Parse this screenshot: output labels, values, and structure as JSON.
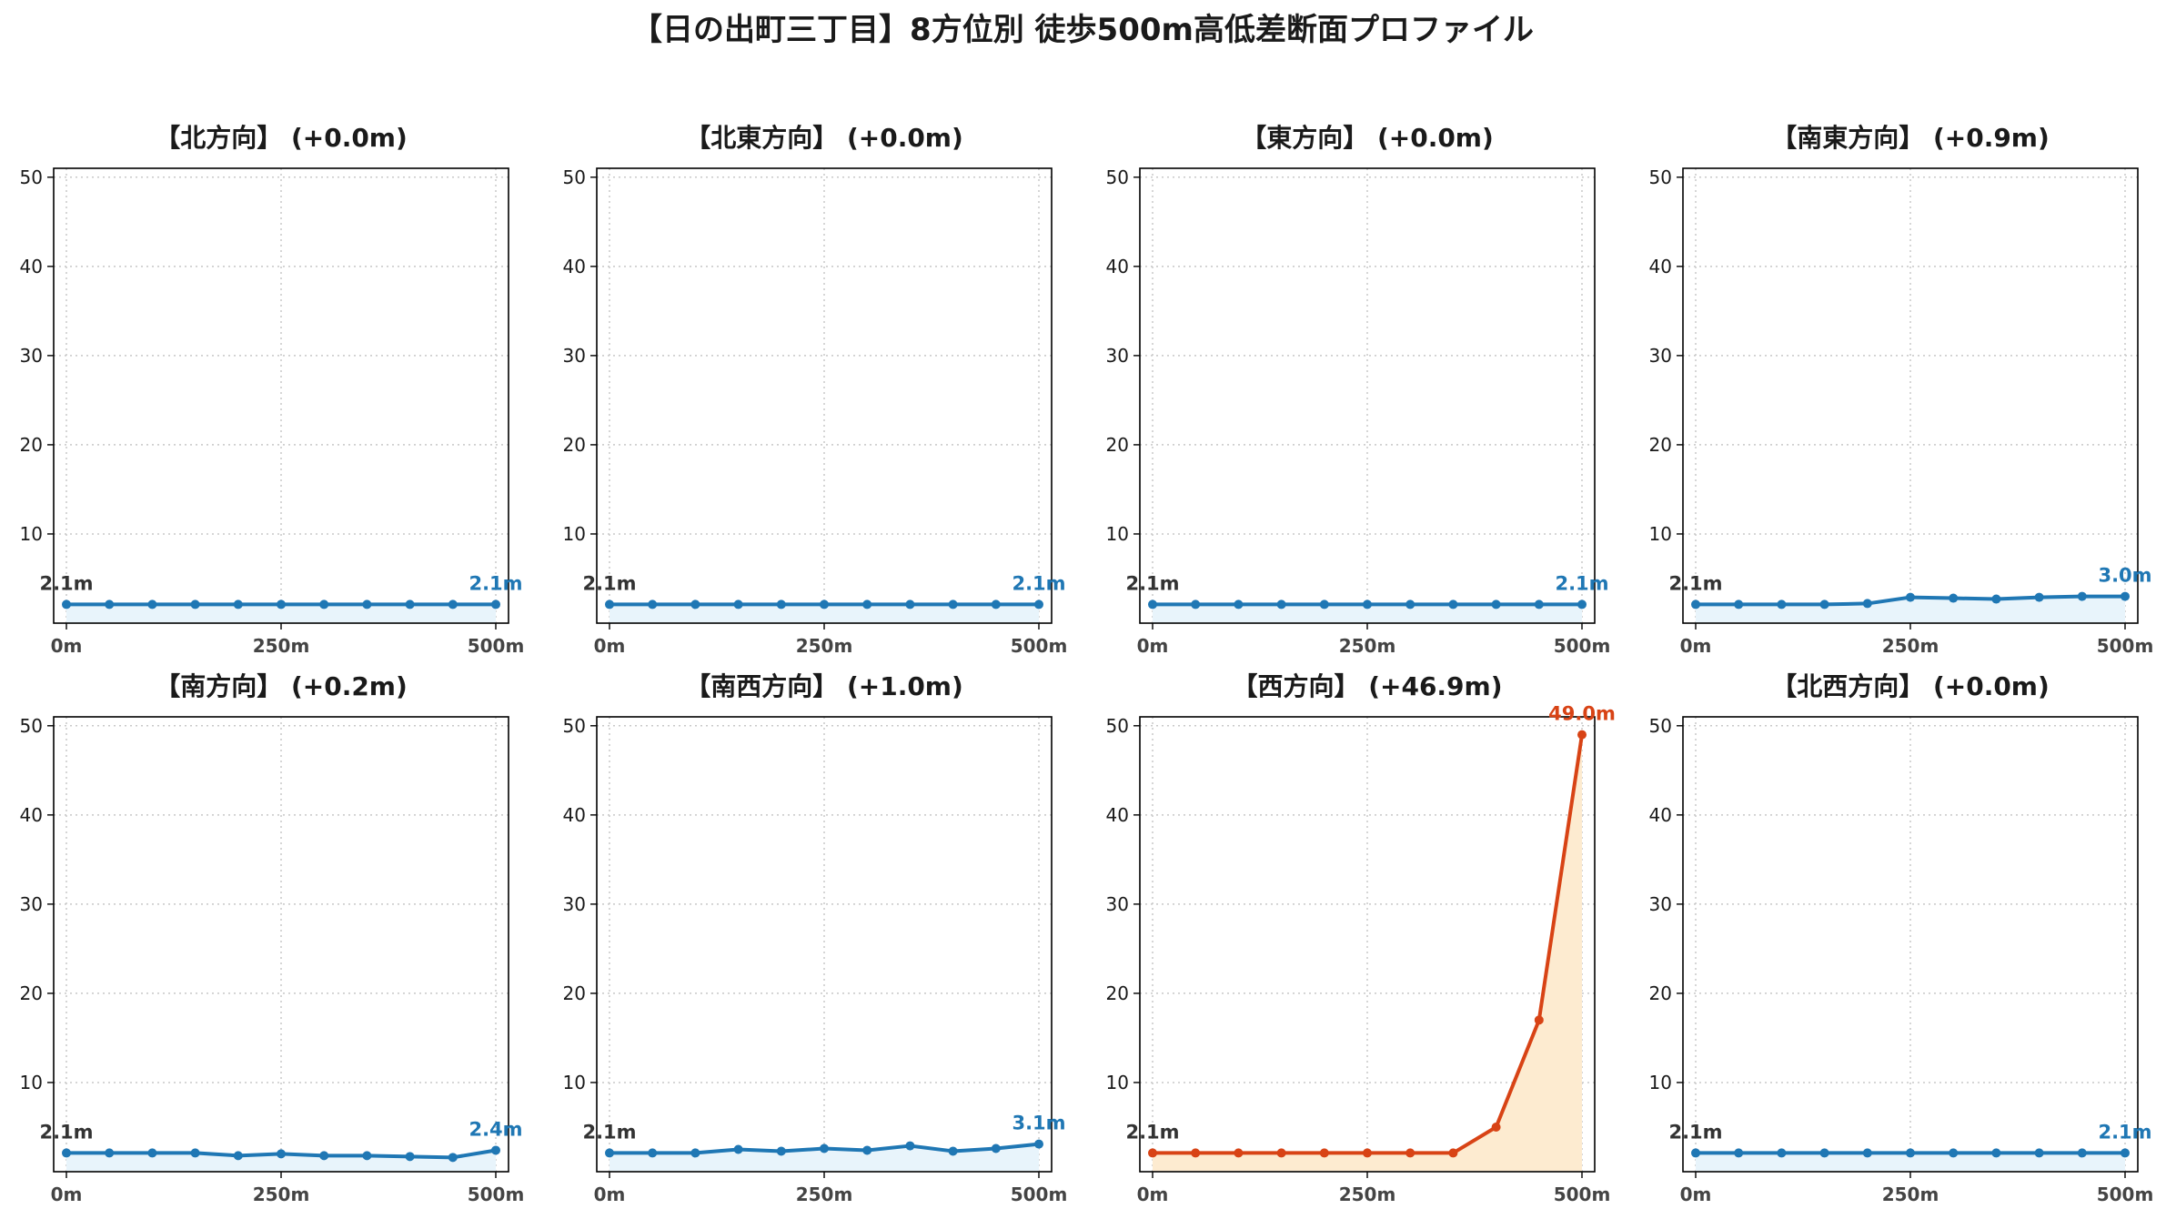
{
  "title": "【日の出町三丁目】8方位別 徒歩500m高低差断面プロファイル",
  "colors": {
    "normal_line": "#1f77b4",
    "normal_fill": "#e8f4fb",
    "highlight_line": "#d84315",
    "highlight_fill": "#fdebd0",
    "grid": "#c8c8c8",
    "start_label": "#333333"
  },
  "chart_data": [
    {
      "type": "line",
      "title": "【北方向】 (+0.0m)",
      "highlight": false,
      "x": [
        0,
        50,
        100,
        150,
        200,
        250,
        300,
        350,
        400,
        450,
        500
      ],
      "y": [
        2.1,
        2.1,
        2.1,
        2.1,
        2.1,
        2.1,
        2.1,
        2.1,
        2.1,
        2.1,
        2.1
      ],
      "start_label": "2.1m",
      "end_label": "2.1m",
      "xticks": [
        "0m",
        "250m",
        "500m"
      ],
      "yticks": [
        10,
        20,
        30,
        40,
        50
      ],
      "ylim": [
        0,
        51
      ],
      "xlim": [
        0,
        500
      ],
      "grid": true
    },
    {
      "type": "line",
      "title": "【北東方向】 (+0.0m)",
      "highlight": false,
      "x": [
        0,
        50,
        100,
        150,
        200,
        250,
        300,
        350,
        400,
        450,
        500
      ],
      "y": [
        2.1,
        2.1,
        2.1,
        2.1,
        2.1,
        2.1,
        2.1,
        2.1,
        2.1,
        2.1,
        2.1
      ],
      "start_label": "2.1m",
      "end_label": "2.1m",
      "xticks": [
        "0m",
        "250m",
        "500m"
      ],
      "yticks": [
        10,
        20,
        30,
        40,
        50
      ],
      "ylim": [
        0,
        51
      ],
      "xlim": [
        0,
        500
      ],
      "grid": true
    },
    {
      "type": "line",
      "title": "【東方向】 (+0.0m)",
      "highlight": false,
      "x": [
        0,
        50,
        100,
        150,
        200,
        250,
        300,
        350,
        400,
        450,
        500
      ],
      "y": [
        2.1,
        2.1,
        2.1,
        2.1,
        2.1,
        2.1,
        2.1,
        2.1,
        2.1,
        2.1,
        2.1
      ],
      "start_label": "2.1m",
      "end_label": "2.1m",
      "xticks": [
        "0m",
        "250m",
        "500m"
      ],
      "yticks": [
        10,
        20,
        30,
        40,
        50
      ],
      "ylim": [
        0,
        51
      ],
      "xlim": [
        0,
        500
      ],
      "grid": true
    },
    {
      "type": "line",
      "title": "【南東方向】 (+0.9m)",
      "highlight": false,
      "x": [
        0,
        50,
        100,
        150,
        200,
        250,
        300,
        350,
        400,
        450,
        500
      ],
      "y": [
        2.1,
        2.1,
        2.1,
        2.1,
        2.2,
        2.9,
        2.8,
        2.7,
        2.9,
        3.0,
        3.0
      ],
      "start_label": "2.1m",
      "end_label": "3.0m",
      "xticks": [
        "0m",
        "250m",
        "500m"
      ],
      "yticks": [
        10,
        20,
        30,
        40,
        50
      ],
      "ylim": [
        0,
        51
      ],
      "xlim": [
        0,
        500
      ],
      "grid": true
    },
    {
      "type": "line",
      "title": "【南方向】 (+0.2m)",
      "highlight": false,
      "x": [
        0,
        50,
        100,
        150,
        200,
        250,
        300,
        350,
        400,
        450,
        500
      ],
      "y": [
        2.1,
        2.1,
        2.1,
        2.1,
        1.8,
        2.0,
        1.8,
        1.8,
        1.7,
        1.6,
        2.4
      ],
      "start_label": "2.1m",
      "end_label": "2.4m",
      "xticks": [
        "0m",
        "250m",
        "500m"
      ],
      "yticks": [
        10,
        20,
        30,
        40,
        50
      ],
      "ylim": [
        0,
        51
      ],
      "xlim": [
        0,
        500
      ],
      "grid": true
    },
    {
      "type": "line",
      "title": "【南西方向】 (+1.0m)",
      "highlight": false,
      "x": [
        0,
        50,
        100,
        150,
        200,
        250,
        300,
        350,
        400,
        450,
        500
      ],
      "y": [
        2.1,
        2.1,
        2.1,
        2.5,
        2.3,
        2.6,
        2.4,
        2.9,
        2.3,
        2.6,
        3.1
      ],
      "start_label": "2.1m",
      "end_label": "3.1m",
      "xticks": [
        "0m",
        "250m",
        "500m"
      ],
      "yticks": [
        10,
        20,
        30,
        40,
        50
      ],
      "ylim": [
        0,
        51
      ],
      "xlim": [
        0,
        500
      ],
      "grid": true
    },
    {
      "type": "area",
      "title": "【西方向】 (+46.9m)",
      "highlight": true,
      "x": [
        0,
        50,
        100,
        150,
        200,
        250,
        300,
        350,
        400,
        450,
        500
      ],
      "y": [
        2.1,
        2.1,
        2.1,
        2.1,
        2.1,
        2.1,
        2.1,
        2.1,
        5.0,
        17.0,
        49.0
      ],
      "start_label": "2.1m",
      "end_label": "49.0m",
      "xticks": [
        "0m",
        "250m",
        "500m"
      ],
      "yticks": [
        10,
        20,
        30,
        40,
        50
      ],
      "ylim": [
        0,
        51
      ],
      "xlim": [
        0,
        500
      ],
      "grid": true
    },
    {
      "type": "line",
      "title": "【北西方向】 (+0.0m)",
      "highlight": false,
      "x": [
        0,
        50,
        100,
        150,
        200,
        250,
        300,
        350,
        400,
        450,
        500
      ],
      "y": [
        2.1,
        2.1,
        2.1,
        2.1,
        2.1,
        2.1,
        2.1,
        2.1,
        2.1,
        2.1,
        2.1
      ],
      "start_label": "2.1m",
      "end_label": "2.1m",
      "xticks": [
        "0m",
        "250m",
        "500m"
      ],
      "yticks": [
        10,
        20,
        30,
        40,
        50
      ],
      "ylim": [
        0,
        51
      ],
      "xlim": [
        0,
        500
      ],
      "grid": true
    }
  ]
}
